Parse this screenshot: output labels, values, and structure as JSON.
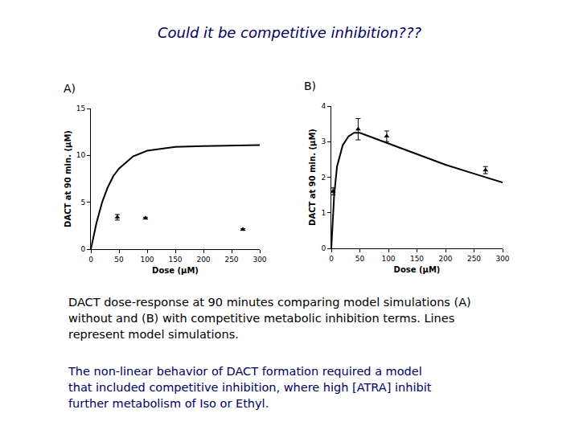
{
  "slide": {
    "title": "Could it be competitive inhibition???",
    "caption": [
      [
        "DACT dose-response at 90 minutes comparing model simulations (A)",
        "without and (B) with competitive metabolic inhibition terms. Lines",
        "represent model simulations."
      ],
      [
        "The non-linear behavior of DACT formation required a model",
        "that included competitive inhibition, where high [ATRA] inhibit",
        "further metabolism of Iso or Ethyl."
      ]
    ]
  },
  "chart_data": [
    {
      "type": "line",
      "title": "A)",
      "x_label": "Dose (μM)",
      "y_label": "DACT at 90 min. (μM)",
      "xlim": [
        0,
        300
      ],
      "xticks": [
        0,
        50,
        100,
        150,
        200,
        250,
        300
      ],
      "ylim": [
        0,
        15
      ],
      "yticks": [
        0,
        5,
        10,
        15
      ],
      "grid": false,
      "series": [
        {
          "type": "line",
          "color": "#000000",
          "line_style": "solid",
          "x": [
            0,
            10,
            20,
            30,
            40,
            50,
            75,
            100,
            150,
            200,
            300
          ],
          "values": [
            0,
            2.8,
            5,
            6.6,
            7.8,
            8.6,
            9.9,
            10.5,
            10.9,
            11,
            11.1
          ]
        },
        {
          "type": "scatter",
          "color": "#000000",
          "marker": "triangle-up",
          "x": [
            47,
            97,
            270
          ],
          "values": [
            3.4,
            3.3,
            2.1
          ],
          "errors": [
            0.3,
            0.1,
            0.1
          ]
        }
      ]
    },
    {
      "type": "line",
      "title": "B)",
      "x_label": "Dose (μM)",
      "y_label": "DACT at 90 min. (μM)",
      "xlim": [
        0,
        300
      ],
      "xticks": [
        0,
        50,
        100,
        150,
        200,
        250,
        300
      ],
      "ylim": [
        0,
        4
      ],
      "yticks": [
        0,
        1,
        2,
        3,
        4
      ],
      "grid": false,
      "series": [
        {
          "type": "line",
          "color": "#000000",
          "line_style": "solid",
          "x": [
            0,
            5,
            10,
            20,
            30,
            40,
            50,
            75,
            100,
            150,
            200,
            250,
            300
          ],
          "values": [
            0,
            1.5,
            2.3,
            2.9,
            3.15,
            3.25,
            3.25,
            3.1,
            2.95,
            2.65,
            2.35,
            2.1,
            1.85
          ]
        },
        {
          "type": "scatter",
          "color": "#000000",
          "marker": "triangle-up",
          "x": [
            3,
            47,
            97,
            270
          ],
          "values": [
            1.6,
            3.35,
            3.15,
            2.2
          ],
          "errors": [
            0.1,
            0.3,
            0.15,
            0.1
          ]
        }
      ]
    }
  ]
}
